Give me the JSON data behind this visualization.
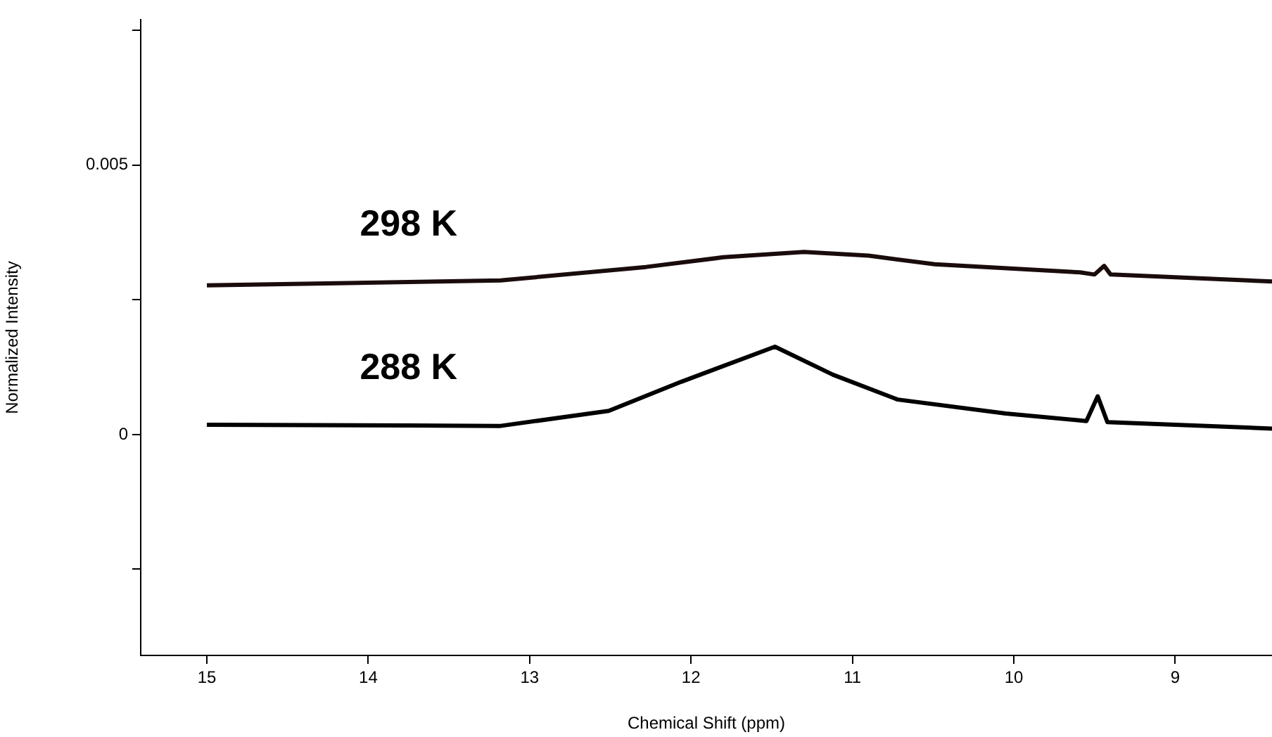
{
  "chart_data": {
    "type": "line",
    "xlabel": "Chemical Shift (ppm)",
    "ylabel": "Normalized Intensity",
    "xlim": [
      15.41,
      8.4
    ],
    "ylim": [
      -0.0041,
      0.0077
    ],
    "xticks": [
      15,
      14,
      13,
      12,
      11,
      10,
      9
    ],
    "yticks": [
      {
        "value": -0.0025,
        "label": null
      },
      0,
      {
        "value": 0.0025,
        "label": null
      },
      0.005,
      {
        "value": 0.0075,
        "label": null
      }
    ],
    "series": [
      {
        "name": "298 K",
        "color": "#1a0c0c",
        "x": [
          15,
          13.75,
          13.18,
          12.28,
          11.8,
          11.3,
          10.9,
          10.49,
          9.59,
          9.5,
          9.44,
          9.4,
          8.4
        ],
        "values": [
          0.00277,
          0.00283,
          0.00286,
          0.00311,
          0.00329,
          0.00339,
          0.00332,
          0.00316,
          0.00301,
          0.00297,
          0.00313,
          0.00297,
          0.00284
        ]
      },
      {
        "name": "288 K",
        "color": "#000000",
        "x": [
          15,
          13.75,
          13.18,
          12.51,
          12.06,
          11.48,
          11.12,
          10.72,
          10.05,
          9.55,
          9.48,
          9.42,
          8.4
        ],
        "values": [
          0.00018,
          0.00017,
          0.00016,
          0.00044,
          0.00098,
          0.00163,
          0.00111,
          0.00065,
          0.00039,
          0.00025,
          0.00071,
          0.00023,
          0.00011
        ]
      }
    ]
  }
}
